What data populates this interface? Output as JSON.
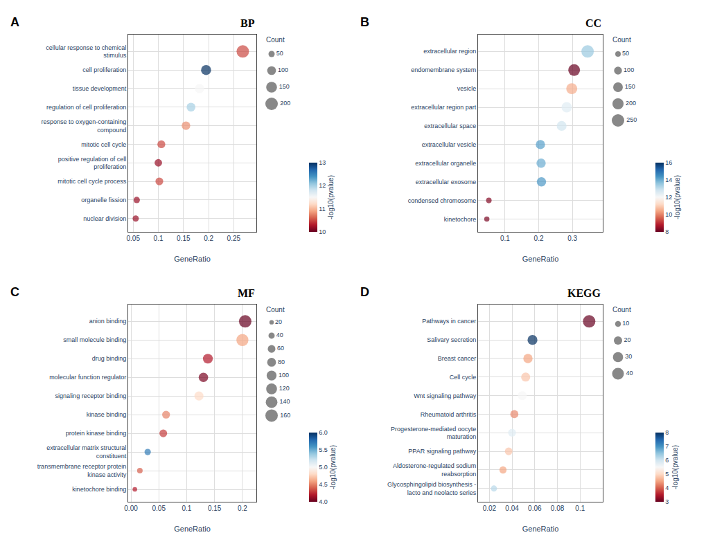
{
  "chart_data": [
    {
      "type": "scatter",
      "title": "BP",
      "annotations": [
        "A"
      ],
      "orientation": "horizontal",
      "categories": [
        "cellular response to chemical\nstimulus",
        "cell proliferation",
        "tissue development",
        "regulation of cell proliferation",
        "response to oxygen-containing\ncompound",
        "mitotic cell cycle",
        "positive regulation of cell\nproliferation",
        "mitotic cell cycle process",
        "organelle fission",
        "nuclear division"
      ],
      "values": [
        0.268,
        0.195,
        0.182,
        0.165,
        0.155,
        0.106,
        0.1,
        0.102,
        0.057,
        0.055
      ],
      "size": [
        200,
        130,
        115,
        100,
        95,
        80,
        72,
        78,
        52,
        50
      ],
      "color_values": [
        10.5,
        13.0,
        11.5,
        12.0,
        10.8,
        10.5,
        10.2,
        10.5,
        10.2,
        10.2
      ],
      "xlabel": "GeneRatio",
      "xlim": [
        0.04,
        0.295
      ],
      "xticks": [
        0.05,
        0.1,
        0.15,
        0.2,
        0.25
      ],
      "grid": true,
      "size_legend": {
        "title": "Count",
        "values": [
          50,
          100,
          150,
          200
        ],
        "color": "#555555"
      },
      "colorbar": {
        "title": "-log10(pvalue)",
        "range": [
          10,
          13
        ],
        "ticks": [
          10,
          11,
          12,
          13
        ]
      }
    },
    {
      "type": "scatter",
      "title": "CC",
      "annotations": [
        "B"
      ],
      "orientation": "horizontal",
      "categories": [
        "extracellular region",
        "endomembrane system",
        "vesicle",
        "extracellular region part",
        "extracellular space",
        "extracellular vesicle",
        "extracellular organelle",
        "extracellular exosome",
        "condensed chromosome",
        "kinetochore"
      ],
      "values": [
        0.345,
        0.305,
        0.298,
        0.283,
        0.268,
        0.205,
        0.207,
        0.208,
        0.052,
        0.046
      ],
      "size": [
        250,
        220,
        195,
        175,
        155,
        138,
        138,
        142,
        50,
        44
      ],
      "color_values": [
        13.5,
        8.0,
        10.5,
        12.5,
        12.8,
        14.2,
        14.0,
        14.3,
        8.3,
        8.2
      ],
      "xlabel": "GeneRatio",
      "xlim": [
        0.02,
        0.39
      ],
      "xticks": [
        0.1,
        0.2,
        0.3
      ],
      "grid": true,
      "size_legend": {
        "title": "Count",
        "values": [
          50,
          100,
          150,
          200,
          250
        ],
        "color": "#555555"
      },
      "colorbar": {
        "title": "-log10(pvalue)",
        "range": [
          8,
          16
        ],
        "ticks": [
          8,
          10,
          12,
          14,
          16
        ]
      }
    },
    {
      "type": "scatter",
      "title": "MF",
      "annotations": [
        "C"
      ],
      "orientation": "horizontal",
      "categories": [
        "anion binding",
        "small molecule binding",
        "drug binding",
        "molecular function regulator",
        "signaling receptor binding",
        "kinase binding",
        "protein kinase binding",
        "extracellular matrix structural\nconstituent",
        "transmembrane receptor protein\nkinase activity",
        "kinetochore binding"
      ],
      "values": [
        0.205,
        0.2,
        0.138,
        0.13,
        0.122,
        0.063,
        0.058,
        0.03,
        0.016,
        0.007
      ],
      "size": [
        160,
        150,
        100,
        92,
        85,
        63,
        62,
        42,
        32,
        22
      ],
      "color_values": [
        4.0,
        4.6,
        4.2,
        4.05,
        4.8,
        4.5,
        4.3,
        5.7,
        4.4,
        4.2
      ],
      "xlabel": "GeneRatio",
      "xlim": [
        -0.005,
        0.225
      ],
      "xticks": [
        {
          "value": 0,
          "label": "0.00"
        },
        0.05,
        0.1,
        0.15,
        0.2
      ],
      "grid": true,
      "size_legend": {
        "title": "Count",
        "values": [
          20,
          40,
          60,
          80,
          100,
          120,
          140,
          160
        ],
        "color": "#555555"
      },
      "colorbar": {
        "title": "-log10(pvalue)",
        "range": [
          4.0,
          6.0
        ],
        "ticks": [
          {
            "value": 4,
            "label": "4.0"
          },
          4.5,
          {
            "value": 5,
            "label": "5.0"
          },
          5.5,
          {
            "value": 6,
            "label": "6.0"
          }
        ]
      }
    },
    {
      "type": "scatter",
      "title": "KEGG",
      "annotations": [
        "D"
      ],
      "orientation": "horizontal",
      "categories": [
        "Pathways in cancer",
        "Salivary secretion",
        "Breast cancer",
        "Cell cycle",
        "Wnt signaling pathway",
        "Rheumatoid arthritis",
        "Progesterone-mediated oocyte\nmaturation",
        "PPAR signaling pathway",
        "Aldosterone-regulated sodium\nreabsorption",
        "Glycosphingolipid biosynthesis -\nlacto and neolacto series"
      ],
      "values": [
        0.108,
        0.058,
        0.054,
        0.052,
        0.049,
        0.042,
        0.04,
        0.037,
        0.032,
        0.024
      ],
      "size": [
        45,
        28,
        25,
        24,
        23,
        19,
        18,
        17,
        15,
        11
      ],
      "color_values": [
        3.0,
        8.0,
        4.5,
        4.8,
        5.5,
        4.3,
        5.8,
        4.8,
        4.5,
        6.2
      ],
      "xlabel": "GeneRatio",
      "xlim": [
        0.01,
        0.12
      ],
      "xticks": [
        0.02,
        0.04,
        0.06,
        0.08,
        0.1
      ],
      "grid": true,
      "size_legend": {
        "title": "Count",
        "values": [
          10,
          20,
          30,
          40
        ],
        "color": "#555555"
      },
      "colorbar": {
        "title": "-log10(pvalue)",
        "range": [
          3,
          8
        ],
        "ticks": [
          3,
          4,
          5,
          6,
          7,
          8
        ]
      }
    }
  ]
}
